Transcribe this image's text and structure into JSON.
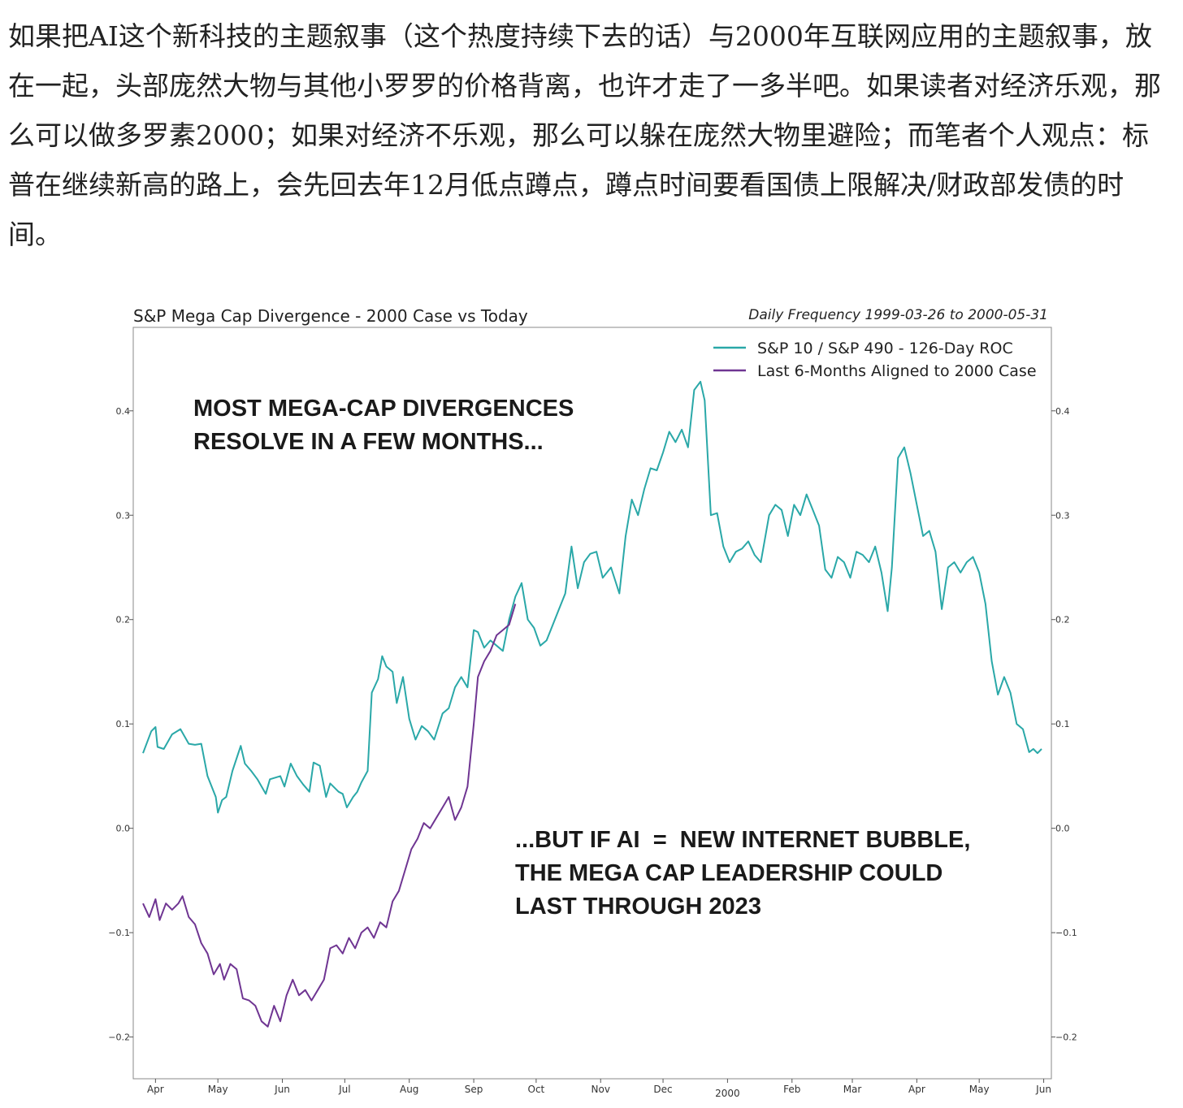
{
  "article": {
    "text": "如果把AI这个新科技的主题叙事（这个热度持续下去的话）与2000年互联网应用的主题叙事，放在一起，头部庞然大物与其他小罗罗的价格背离，也许才走了一多半吧。如果读者对经济乐观，那么可以做多罗素2000；如果对经济不乐观，那么可以躲在庞然大物里避险；而笔者个人观点：标普在继续新高的路上，会先回去年12月低点蹲点，蹲点时间要看国债上限解决/财政部发债的时间。"
  },
  "chart_data": {
    "type": "line",
    "title": "S&P Mega Cap Divergence - 2000 Case vs Today",
    "subtitle": "Daily Frequency 1999-03-26 to 2000-05-31",
    "xlabel": "",
    "ylabel": "",
    "ylim": [
      -0.24,
      0.48
    ],
    "yticks": [
      -0.2,
      -0.1,
      0.0,
      0.1,
      0.2,
      0.3,
      0.4
    ],
    "ytick_labels": [
      "−0.2",
      "−0.1",
      "0.0",
      "0.1",
      "0.2",
      "0.3",
      "0.4"
    ],
    "xlim": [
      "1999-03-26",
      "2000-05-31"
    ],
    "xticks": [
      {
        "date": "1999-04-01",
        "label": "Apr"
      },
      {
        "date": "1999-05-01",
        "label": "May"
      },
      {
        "date": "1999-06-01",
        "label": "Jun"
      },
      {
        "date": "1999-07-01",
        "label": "Jul"
      },
      {
        "date": "1999-08-01",
        "label": "Aug"
      },
      {
        "date": "1999-09-01",
        "label": "Sep"
      },
      {
        "date": "1999-10-01",
        "label": "Oct"
      },
      {
        "date": "1999-11-01",
        "label": "Nov"
      },
      {
        "date": "1999-12-01",
        "label": "Dec"
      },
      {
        "date": "2000-01-01",
        "label": "2000"
      },
      {
        "date": "2000-02-01",
        "label": "Feb"
      },
      {
        "date": "2000-03-01",
        "label": "Mar"
      },
      {
        "date": "2000-04-01",
        "label": "Apr"
      },
      {
        "date": "2000-05-01",
        "label": "May"
      },
      {
        "date": "2000-06-01",
        "label": "Jun"
      }
    ],
    "grid": false,
    "legend_position": "top-right",
    "annotations": [
      "MOST MEGA-CAP DIVERGENCES",
      "RESOLVE IN A FEW MONTHS...",
      "...BUT IF AI  =  NEW INTERNET BUBBLE,",
      "THE MEGA CAP LEADERSHIP COULD",
      "LAST THROUGH 2023"
    ],
    "series": [
      {
        "name": "S&P 10 / S&P 490 - 126-Day ROC",
        "color": "#2aa8a8",
        "points": [
          [
            "1999-03-26",
            0.072
          ],
          [
            "1999-03-30",
            0.093
          ],
          [
            "1999-04-01",
            0.097
          ],
          [
            "1999-04-02",
            0.078
          ],
          [
            "1999-04-05",
            0.076
          ],
          [
            "1999-04-09",
            0.09
          ],
          [
            "1999-04-13",
            0.095
          ],
          [
            "1999-04-15",
            0.088
          ],
          [
            "1999-04-17",
            0.081
          ],
          [
            "1999-04-20",
            0.08
          ],
          [
            "1999-04-23",
            0.081
          ],
          [
            "1999-04-26",
            0.05
          ],
          [
            "1999-04-30",
            0.03
          ],
          [
            "1999-05-01",
            0.015
          ],
          [
            "1999-05-03",
            0.027
          ],
          [
            "1999-05-05",
            0.03
          ],
          [
            "1999-05-08",
            0.055
          ],
          [
            "1999-05-12",
            0.079
          ],
          [
            "1999-05-14",
            0.062
          ],
          [
            "1999-05-17",
            0.055
          ],
          [
            "1999-05-20",
            0.047
          ],
          [
            "1999-05-24",
            0.033
          ],
          [
            "1999-05-26",
            0.047
          ],
          [
            "1999-05-31",
            0.05
          ],
          [
            "1999-06-02",
            0.04
          ],
          [
            "1999-06-05",
            0.062
          ],
          [
            "1999-06-08",
            0.05
          ],
          [
            "1999-06-11",
            0.042
          ],
          [
            "1999-06-14",
            0.035
          ],
          [
            "1999-06-16",
            0.063
          ],
          [
            "1999-06-19",
            0.06
          ],
          [
            "1999-06-22",
            0.03
          ],
          [
            "1999-06-24",
            0.043
          ],
          [
            "1999-06-28",
            0.035
          ],
          [
            "1999-06-30",
            0.033
          ],
          [
            "1999-07-02",
            0.02
          ],
          [
            "1999-07-05",
            0.03
          ],
          [
            "1999-07-07",
            0.035
          ],
          [
            "1999-07-09",
            0.044
          ],
          [
            "1999-07-12",
            0.055
          ],
          [
            "1999-07-14",
            0.13
          ],
          [
            "1999-07-17",
            0.143
          ],
          [
            "1999-07-19",
            0.165
          ],
          [
            "1999-07-21",
            0.155
          ],
          [
            "1999-07-24",
            0.15
          ],
          [
            "1999-07-26",
            0.12
          ],
          [
            "1999-07-29",
            0.145
          ],
          [
            "1999-08-01",
            0.105
          ],
          [
            "1999-08-04",
            0.085
          ],
          [
            "1999-08-07",
            0.098
          ],
          [
            "1999-08-10",
            0.093
          ],
          [
            "1999-08-13",
            0.085
          ],
          [
            "1999-08-17",
            0.11
          ],
          [
            "1999-08-20",
            0.115
          ],
          [
            "1999-08-23",
            0.135
          ],
          [
            "1999-08-26",
            0.145
          ],
          [
            "1999-08-29",
            0.135
          ],
          [
            "1999-09-01",
            0.19
          ],
          [
            "1999-09-03",
            0.188
          ],
          [
            "1999-09-06",
            0.173
          ],
          [
            "1999-09-09",
            0.18
          ],
          [
            "1999-09-12",
            0.175
          ],
          [
            "1999-09-15",
            0.17
          ],
          [
            "1999-09-18",
            0.2
          ],
          [
            "1999-09-21",
            0.222
          ],
          [
            "1999-09-24",
            0.235
          ],
          [
            "1999-09-27",
            0.2
          ],
          [
            "1999-09-30",
            0.192
          ],
          [
            "1999-10-03",
            0.175
          ],
          [
            "1999-10-06",
            0.18
          ],
          [
            "1999-10-08",
            0.19
          ],
          [
            "1999-10-12",
            0.21
          ],
          [
            "1999-10-15",
            0.225
          ],
          [
            "1999-10-18",
            0.27
          ],
          [
            "1999-10-21",
            0.23
          ],
          [
            "1999-10-24",
            0.255
          ],
          [
            "1999-10-27",
            0.263
          ],
          [
            "1999-10-30",
            0.265
          ],
          [
            "1999-11-02",
            0.24
          ],
          [
            "1999-11-06",
            0.25
          ],
          [
            "1999-11-10",
            0.225
          ],
          [
            "1999-11-13",
            0.28
          ],
          [
            "1999-11-16",
            0.315
          ],
          [
            "1999-11-19",
            0.3
          ],
          [
            "1999-11-22",
            0.325
          ],
          [
            "1999-11-25",
            0.345
          ],
          [
            "1999-11-28",
            0.343
          ],
          [
            "1999-12-01",
            0.36
          ],
          [
            "1999-12-04",
            0.38
          ],
          [
            "1999-12-07",
            0.37
          ],
          [
            "1999-12-10",
            0.382
          ],
          [
            "1999-12-13",
            0.365
          ],
          [
            "1999-12-16",
            0.42
          ],
          [
            "1999-12-19",
            0.428
          ],
          [
            "1999-12-21",
            0.41
          ],
          [
            "1999-12-24",
            0.3
          ],
          [
            "1999-12-27",
            0.302
          ],
          [
            "1999-12-30",
            0.27
          ],
          [
            "2000-01-02",
            0.255
          ],
          [
            "2000-01-05",
            0.265
          ],
          [
            "2000-01-08",
            0.268
          ],
          [
            "2000-01-11",
            0.275
          ],
          [
            "2000-01-14",
            0.262
          ],
          [
            "2000-01-17",
            0.255
          ],
          [
            "2000-01-21",
            0.3
          ],
          [
            "2000-01-24",
            0.31
          ],
          [
            "2000-01-27",
            0.305
          ],
          [
            "2000-01-30",
            0.28
          ],
          [
            "2000-02-02",
            0.31
          ],
          [
            "2000-02-05",
            0.3
          ],
          [
            "2000-02-08",
            0.32
          ],
          [
            "2000-02-11",
            0.305
          ],
          [
            "2000-02-14",
            0.29
          ],
          [
            "2000-02-17",
            0.248
          ],
          [
            "2000-02-20",
            0.24
          ],
          [
            "2000-02-23",
            0.26
          ],
          [
            "2000-02-26",
            0.255
          ],
          [
            "2000-02-29",
            0.24
          ],
          [
            "2000-03-03",
            0.265
          ],
          [
            "2000-03-06",
            0.262
          ],
          [
            "2000-03-09",
            0.255
          ],
          [
            "2000-03-12",
            0.27
          ],
          [
            "2000-03-15",
            0.245
          ],
          [
            "2000-03-18",
            0.208
          ],
          [
            "2000-03-20",
            0.25
          ],
          [
            "2000-03-23",
            0.355
          ],
          [
            "2000-03-26",
            0.365
          ],
          [
            "2000-03-29",
            0.34
          ],
          [
            "2000-04-01",
            0.31
          ],
          [
            "2000-04-04",
            0.28
          ],
          [
            "2000-04-07",
            0.285
          ],
          [
            "2000-04-10",
            0.265
          ],
          [
            "2000-04-13",
            0.21
          ],
          [
            "2000-04-16",
            0.25
          ],
          [
            "2000-04-19",
            0.255
          ],
          [
            "2000-04-22",
            0.245
          ],
          [
            "2000-04-25",
            0.255
          ],
          [
            "2000-04-28",
            0.26
          ],
          [
            "2000-05-01",
            0.245
          ],
          [
            "2000-05-04",
            0.215
          ],
          [
            "2000-05-07",
            0.16
          ],
          [
            "2000-05-10",
            0.128
          ],
          [
            "2000-05-13",
            0.145
          ],
          [
            "2000-05-16",
            0.13
          ],
          [
            "2000-05-19",
            0.1
          ],
          [
            "2000-05-22",
            0.095
          ],
          [
            "2000-05-25",
            0.073
          ],
          [
            "2000-05-27",
            0.076
          ],
          [
            "2000-05-29",
            0.072
          ],
          [
            "2000-05-31",
            0.076
          ]
        ]
      },
      {
        "name": "Last 6-Months Aligned to 2000 Case",
        "color": "#6f3592",
        "points": [
          [
            "1999-03-26",
            -0.072
          ],
          [
            "1999-03-29",
            -0.085
          ],
          [
            "1999-04-01",
            -0.068
          ],
          [
            "1999-04-03",
            -0.088
          ],
          [
            "1999-04-06",
            -0.072
          ],
          [
            "1999-04-09",
            -0.078
          ],
          [
            "1999-04-12",
            -0.072
          ],
          [
            "1999-04-14",
            -0.065
          ],
          [
            "1999-04-17",
            -0.085
          ],
          [
            "1999-04-20",
            -0.092
          ],
          [
            "1999-04-23",
            -0.11
          ],
          [
            "1999-04-26",
            -0.12
          ],
          [
            "1999-04-29",
            -0.14
          ],
          [
            "1999-05-02",
            -0.13
          ],
          [
            "1999-05-04",
            -0.145
          ],
          [
            "1999-05-07",
            -0.13
          ],
          [
            "1999-05-10",
            -0.135
          ],
          [
            "1999-05-13",
            -0.163
          ],
          [
            "1999-05-16",
            -0.165
          ],
          [
            "1999-05-19",
            -0.17
          ],
          [
            "1999-05-22",
            -0.185
          ],
          [
            "1999-05-25",
            -0.19
          ],
          [
            "1999-05-28",
            -0.17
          ],
          [
            "1999-05-31",
            -0.185
          ],
          [
            "1999-06-03",
            -0.16
          ],
          [
            "1999-06-06",
            -0.145
          ],
          [
            "1999-06-09",
            -0.16
          ],
          [
            "1999-06-12",
            -0.155
          ],
          [
            "1999-06-15",
            -0.165
          ],
          [
            "1999-06-18",
            -0.155
          ],
          [
            "1999-06-21",
            -0.145
          ],
          [
            "1999-06-24",
            -0.115
          ],
          [
            "1999-06-27",
            -0.112
          ],
          [
            "1999-06-30",
            -0.12
          ],
          [
            "1999-07-03",
            -0.105
          ],
          [
            "1999-07-06",
            -0.115
          ],
          [
            "1999-07-09",
            -0.1
          ],
          [
            "1999-07-12",
            -0.095
          ],
          [
            "1999-07-15",
            -0.105
          ],
          [
            "1999-07-18",
            -0.09
          ],
          [
            "1999-07-21",
            -0.095
          ],
          [
            "1999-07-24",
            -0.07
          ],
          [
            "1999-07-27",
            -0.06
          ],
          [
            "1999-07-30",
            -0.04
          ],
          [
            "1999-08-02",
            -0.02
          ],
          [
            "1999-08-05",
            -0.01
          ],
          [
            "1999-08-08",
            0.005
          ],
          [
            "1999-08-11",
            0.0
          ],
          [
            "1999-08-14",
            0.01
          ],
          [
            "1999-08-17",
            0.02
          ],
          [
            "1999-08-20",
            0.03
          ],
          [
            "1999-08-23",
            0.008
          ],
          [
            "1999-08-26",
            0.02
          ],
          [
            "1999-08-29",
            0.04
          ],
          [
            "1999-09-01",
            0.1
          ],
          [
            "1999-09-03",
            0.145
          ],
          [
            "1999-09-06",
            0.16
          ],
          [
            "1999-09-09",
            0.17
          ],
          [
            "1999-09-12",
            0.185
          ],
          [
            "1999-09-15",
            0.19
          ],
          [
            "1999-09-18",
            0.195
          ],
          [
            "1999-09-21",
            0.215
          ]
        ]
      }
    ]
  }
}
